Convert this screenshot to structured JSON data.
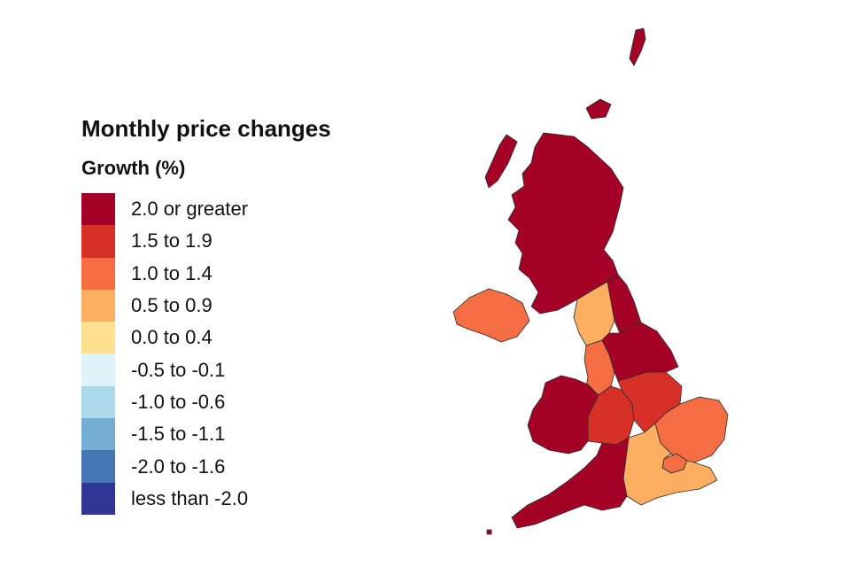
{
  "legend": {
    "title": "Monthly price changes",
    "subtitle": "Growth (%)",
    "items": [
      {
        "label": "2.0 or greater",
        "color": "#a50026"
      },
      {
        "label": "1.5 to 1.9",
        "color": "#d73027"
      },
      {
        "label": "1.0 to 1.4",
        "color": "#f46d43"
      },
      {
        "label": "0.5 to 0.9",
        "color": "#fdae61"
      },
      {
        "label": "0.0 to 0.4",
        "color": "#fee090"
      },
      {
        "label": "-0.5 to -0.1",
        "color": "#e0f3f8"
      },
      {
        "label": "-1.0 to -0.6",
        "color": "#abd9e9"
      },
      {
        "label": "-1.5 to -1.1",
        "color": "#74add1"
      },
      {
        "label": "-2.0 to -1.6",
        "color": "#4575b4"
      },
      {
        "label": "less than -2.0",
        "color": "#313695"
      }
    ]
  },
  "regions": {
    "scotland": {
      "band": "2.0 or greater",
      "color": "#a50026"
    },
    "north_east": {
      "band": "2.0 or greater",
      "color": "#a50026"
    },
    "north_west": {
      "band": "0.5 to 0.9",
      "color": "#fdae61"
    },
    "yorkshire": {
      "band": "2.0 or greater",
      "color": "#a50026"
    },
    "northern_ireland": {
      "band": "1.0 to 1.4",
      "color": "#f46d43"
    },
    "wales": {
      "band": "2.0 or greater",
      "color": "#a50026"
    },
    "west_midlands": {
      "band": "1.5 to 1.9",
      "color": "#d73027"
    },
    "east_midlands": {
      "band": "1.5 to 1.9",
      "color": "#d73027"
    },
    "east_of_england": {
      "band": "1.0 to 1.4",
      "color": "#f46d43"
    },
    "london": {
      "band": "1.0 to 1.4",
      "color": "#f46d43"
    },
    "south_east": {
      "band": "0.5 to 0.9",
      "color": "#fdae61"
    },
    "south_west": {
      "band": "2.0 or greater",
      "color": "#a50026"
    },
    "cheshire_lancs": {
      "band": "1.0 to 1.4",
      "color": "#f46d43"
    }
  }
}
